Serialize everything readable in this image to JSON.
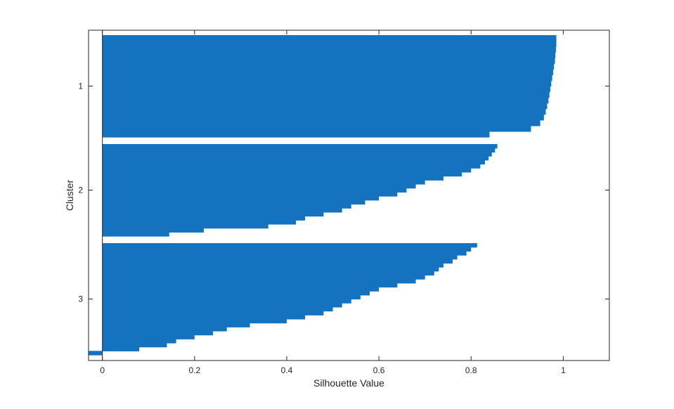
{
  "chart_data": {
    "type": "bar",
    "orientation": "horizontal",
    "title": "",
    "xlabel": "Silhouette Value",
    "ylabel": "Cluster",
    "xlim": [
      -0.03,
      1.1
    ],
    "xticks": [
      0,
      0.2,
      0.4,
      0.6,
      0.8,
      1
    ],
    "xtick_labels": [
      "0",
      "0.2",
      "0.4",
      "0.6",
      "0.8",
      "1"
    ],
    "clusters": [
      {
        "label": "1",
        "silhouettes": [
          0.985,
          0.985,
          0.984,
          0.983,
          0.982,
          0.98,
          0.978,
          0.976,
          0.974,
          0.972,
          0.97,
          0.968,
          0.965,
          0.962,
          0.958,
          0.95,
          0.93,
          0.84
        ]
      },
      {
        "label": "2",
        "silhouettes": [
          0.857,
          0.852,
          0.845,
          0.838,
          0.83,
          0.82,
          0.8,
          0.78,
          0.74,
          0.7,
          0.68,
          0.66,
          0.64,
          0.6,
          0.57,
          0.54,
          0.52,
          0.48,
          0.44,
          0.42,
          0.36,
          0.22,
          0.145
        ]
      },
      {
        "label": "3",
        "silhouettes": [
          0.813,
          0.8,
          0.79,
          0.77,
          0.76,
          0.74,
          0.73,
          0.72,
          0.7,
          0.68,
          0.64,
          0.6,
          0.58,
          0.56,
          0.54,
          0.52,
          0.5,
          0.48,
          0.44,
          0.4,
          0.32,
          0.27,
          0.24,
          0.2,
          0.16,
          0.14,
          0.08,
          -0.03
        ]
      }
    ],
    "bar_color": "#1472be",
    "grid": false,
    "legend": "none"
  }
}
